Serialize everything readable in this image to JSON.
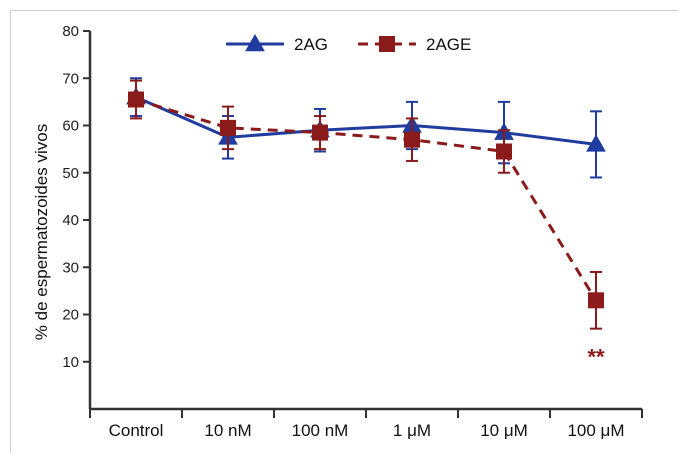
{
  "chart_data": {
    "type": "line",
    "title": "",
    "xlabel": "",
    "ylabel": "% de espermatozoides vivos",
    "categories": [
      "Control",
      "10 nM",
      "100 nM",
      "1 μM",
      "10 μM",
      "100 μM"
    ],
    "ylim": [
      0,
      80
    ],
    "yticks": [
      10,
      20,
      30,
      40,
      50,
      60,
      70,
      80
    ],
    "grid": false,
    "legend_position": "top-center",
    "series": [
      {
        "name": "2AG",
        "color": "#1f3c9e",
        "marker": "triangle",
        "line_style": "solid",
        "values": [
          66,
          57.5,
          59,
          60,
          58.5,
          56
        ],
        "error": [
          4,
          4.5,
          4.5,
          5,
          6.5,
          7
        ]
      },
      {
        "name": "2AGE",
        "color": "#8b1a1a",
        "marker": "square",
        "line_style": "dashed",
        "values": [
          65.5,
          59.5,
          58.5,
          57,
          54.5,
          23
        ],
        "error": [
          4,
          4.5,
          3.5,
          4.5,
          4.5,
          6
        ]
      }
    ],
    "annotations": [
      {
        "text": "**",
        "category": "100 μM",
        "series": "2AGE",
        "color": "#8b1a1a"
      }
    ]
  }
}
